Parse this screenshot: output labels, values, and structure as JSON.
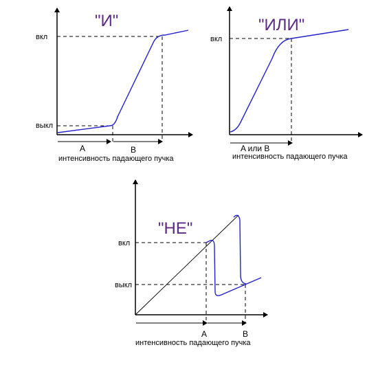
{
  "panels": {
    "and": {
      "title": "\"И\"",
      "on": "вкл",
      "off": "выкл",
      "a": "A",
      "b": "B",
      "caption": "интенсивность падающего  пучка"
    },
    "or": {
      "title": "\"ИЛИ\"",
      "on": "вкл",
      "ab": "A  или B",
      "caption": "интенсивность падающего  пучка"
    },
    "not": {
      "title": "\"НЕ\"",
      "on": "вкл",
      "off": "выкл",
      "a": "A",
      "b": "B",
      "caption": "интенсивность падающего  пучка"
    }
  },
  "colors": {
    "curve": "#2222cc",
    "title": "#5b2a86"
  }
}
